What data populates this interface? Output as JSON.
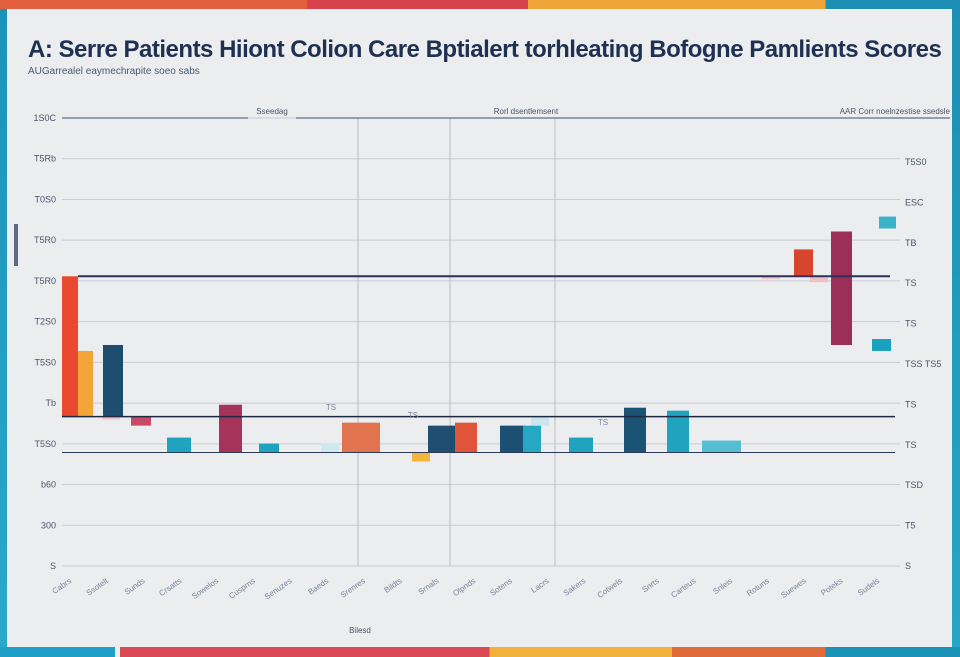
{
  "title": "A: Serre Patients Hiiont Colion Care Bptialert torhleating Bofogne Pamlients Scores",
  "subtitle": "AUGarrealel eaymechrapite soeo sabs",
  "chart_data": {
    "type": "bar",
    "title": "A: Serre Patients Hiiont Colion Care Bptialert torhleating Bofogne Pamlients Scores",
    "xlabel": "Bilesd",
    "ylabel": "",
    "panel_headers": [
      "Sseedag",
      "Rorl dsentlemsent",
      "AAR Corr noelnzestise ssedsle"
    ],
    "y_ticks": [
      "1S0C",
      "T5Rb",
      "T0S0",
      "T5R0",
      "T5R0",
      "T2S0",
      "T5S0",
      "Tb",
      "T5S0",
      "b60",
      "300",
      "S"
    ],
    "y_ticks_right": [
      "T5S0",
      "ESC",
      "TB",
      "TS",
      "TS",
      "TSS TS5",
      "TS",
      "TS",
      "TSD",
      "T5",
      "S"
    ],
    "baseline_value": 25,
    "reference_line_value": 72,
    "ylim": [
      -25,
      125
    ],
    "grid": true,
    "bar_labels": [
      "TS",
      "TS",
      "TS"
    ],
    "series": [
      {
        "color": "#e04a2e",
        "values": [
          60,
          0,
          0,
          0,
          0,
          0,
          0,
          0,
          0,
          0,
          0,
          0,
          0,
          0,
          0,
          0,
          0,
          0,
          0,
          0,
          0,
          0,
          0
        ]
      },
      {
        "color": "#f2a03a",
        "values": [
          22,
          0,
          0,
          0,
          0,
          0,
          0,
          0,
          0,
          0,
          0,
          0,
          0,
          0,
          0,
          0,
          0,
          0,
          0,
          0,
          0,
          0,
          0
        ]
      }
    ],
    "bars": [
      {
        "v0": 25,
        "v1": 72,
        "color": "#e8492f"
      },
      {
        "v0": 25,
        "v1": 47,
        "color": "#f3a53a"
      },
      {
        "v0": 25,
        "v1": 49,
        "color": "#1c4d6e"
      },
      {
        "v0": 22,
        "v1": 25,
        "color": "#c94a67"
      },
      {
        "v0": 13,
        "v1": 18,
        "color": "#20a3bf"
      },
      {
        "v0": 13,
        "v1": 29,
        "color": "#a6345a"
      },
      {
        "v0": 13,
        "v1": 16,
        "color": "#20a3bf"
      },
      {
        "v0": 13,
        "v1": 23,
        "color": "#e1744f"
      },
      {
        "v0": 13,
        "v1": 22,
        "color": "#1f4e70"
      },
      {
        "v0": 13,
        "v1": 23,
        "color": "#e0553a"
      },
      {
        "v0": 10,
        "v1": 13,
        "color": "#f4b53f"
      },
      {
        "v0": 13,
        "v1": 22,
        "color": "#1b4f74"
      },
      {
        "v0": 13,
        "v1": 22,
        "color": "#26a8c2"
      },
      {
        "v0": 13,
        "v1": 18,
        "color": "#20a3bf"
      },
      {
        "v0": 13,
        "v1": 28,
        "color": "#1b5374"
      },
      {
        "v0": 13,
        "v1": 27,
        "color": "#20a3bf"
      },
      {
        "v0": 13,
        "v1": 17,
        "color": "#55bed3"
      },
      {
        "v0": 72,
        "v1": 81,
        "color": "#d8452f"
      },
      {
        "v0": 49,
        "v1": 87,
        "color": "#9b2f58"
      },
      {
        "v0": 47,
        "v1": 51,
        "color": "#1aa1bd"
      },
      {
        "v0": 88,
        "v1": 92,
        "color": "#3bb2ca"
      }
    ],
    "categories": [
      "Cabrs",
      "Ssotelt",
      "Sunds",
      "Crsatts",
      "Sowelos",
      "Cusprns",
      "Senuzes",
      "Baeds",
      "Srenres",
      "Bildts",
      "Srnals",
      "Olpnds",
      "Sotens",
      "Lacrs",
      "Sakers",
      "Cotwels",
      "Snrts",
      "Carteus",
      "Snleis",
      "Rotuns",
      "Suewes",
      "Poteks",
      "Sudels"
    ]
  }
}
